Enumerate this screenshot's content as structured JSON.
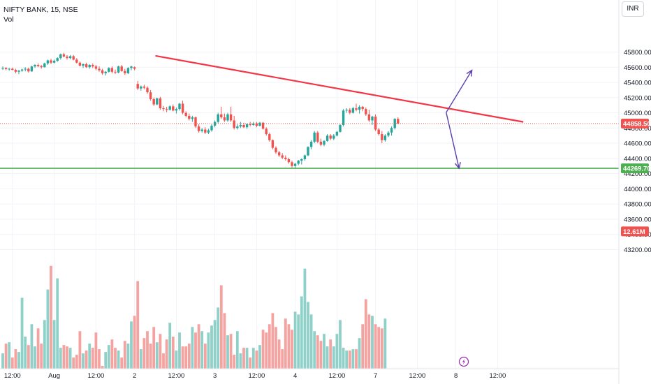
{
  "legend": {
    "symbol_line": "NIFTY BANK, 15, NSE",
    "vol_label": "Vol"
  },
  "currency": "INR",
  "colors": {
    "up": "#26a69a",
    "down": "#ef5350",
    "vol_up": "#8fd0c8",
    "vol_down": "#f5a3a1",
    "trendline": "#f23645",
    "support": "#4caf50",
    "arrows": "#5b3fb0",
    "grid": "#f0f3fa",
    "dotted_price": "#ef5350"
  },
  "chart_data": {
    "type": "candlestick",
    "title": "NIFTY BANK, 15, NSE",
    "y_ticks": [
      "45800.00",
      "45600.00",
      "45400.00",
      "45200.00",
      "45000.00",
      "44800.00",
      "44600.00",
      "44400.00",
      "44200.00",
      "44000.00",
      "43800.00",
      "43600.00",
      "43400.00",
      "43200.00"
    ],
    "x_ticks": [
      {
        "label": "12:00",
        "bar": 3
      },
      {
        "label": "Aug",
        "bar": 16
      },
      {
        "label": "12:00",
        "bar": 29
      },
      {
        "label": "2",
        "bar": 41
      },
      {
        "label": "12:00",
        "bar": 54
      },
      {
        "label": "3",
        "bar": 66
      },
      {
        "label": "12:00",
        "bar": 79
      },
      {
        "label": "4",
        "bar": 91
      },
      {
        "label": "12:00",
        "bar": 104
      },
      {
        "label": "7",
        "bar": 116
      },
      {
        "label": "12:00",
        "bar": 129
      },
      {
        "label": "8",
        "bar": 141
      },
      {
        "label": "12:00",
        "bar": 154
      }
    ],
    "ohlc": [
      [
        45580,
        45610,
        45565,
        45590
      ],
      [
        45590,
        45600,
        45560,
        45575
      ],
      [
        45575,
        45590,
        45555,
        45580
      ],
      [
        45580,
        45595,
        45560,
        45565
      ],
      [
        45565,
        45580,
        45520,
        45540
      ],
      [
        45540,
        45565,
        45510,
        45555
      ],
      [
        45555,
        45580,
        45540,
        45570
      ],
      [
        45570,
        45600,
        45545,
        45580
      ],
      [
        45580,
        45595,
        45530,
        45545
      ],
      [
        45545,
        45620,
        45540,
        45610
      ],
      [
        45610,
        45640,
        45590,
        45630
      ],
      [
        45630,
        45650,
        45600,
        45615
      ],
      [
        45615,
        45630,
        45580,
        45600
      ],
      [
        45600,
        45660,
        45595,
        45650
      ],
      [
        45650,
        45700,
        45630,
        45690
      ],
      [
        45690,
        45710,
        45640,
        45660
      ],
      [
        45660,
        45700,
        45650,
        45685
      ],
      [
        45685,
        45730,
        45670,
        45720
      ],
      [
        45720,
        45780,
        45700,
        45770
      ],
      [
        45770,
        45790,
        45730,
        45740
      ],
      [
        45740,
        45760,
        45700,
        45720
      ],
      [
        45720,
        45760,
        45705,
        45745
      ],
      [
        45745,
        45760,
        45690,
        45700
      ],
      [
        45700,
        45720,
        45650,
        45660
      ],
      [
        45660,
        45675,
        45610,
        45620
      ],
      [
        45620,
        45650,
        45590,
        45640
      ],
      [
        45640,
        45660,
        45590,
        45600
      ],
      [
        45600,
        45640,
        45580,
        45630
      ],
      [
        45630,
        45650,
        45590,
        45610
      ],
      [
        45610,
        45630,
        45560,
        45580
      ],
      [
        45580,
        45610,
        45540,
        45560
      ],
      [
        45560,
        45580,
        45500,
        45520
      ],
      [
        45520,
        45550,
        45490,
        45540
      ],
      [
        45540,
        45600,
        45530,
        45590
      ],
      [
        45590,
        45610,
        45520,
        45540
      ],
      [
        45540,
        45570,
        45510,
        45530
      ],
      [
        45530,
        45620,
        45520,
        45610
      ],
      [
        45610,
        45630,
        45540,
        45550
      ],
      [
        45550,
        45580,
        45500,
        45520
      ],
      [
        45520,
        45600,
        45510,
        45590
      ],
      [
        45590,
        45620,
        45560,
        45610
      ],
      [
        45600,
        45610,
        45560,
        45580
      ],
      [
        45380,
        45420,
        45300,
        45320
      ],
      [
        45320,
        45360,
        45290,
        45345
      ],
      [
        45345,
        45370,
        45310,
        45330
      ],
      [
        45330,
        45350,
        45250,
        45270
      ],
      [
        45270,
        45300,
        45160,
        45180
      ],
      [
        45180,
        45200,
        45090,
        45110
      ],
      [
        45110,
        45200,
        45100,
        45190
      ],
      [
        45190,
        45210,
        45040,
        45060
      ],
      [
        45060,
        45090,
        45020,
        45050
      ],
      [
        45050,
        45080,
        45010,
        45040
      ],
      [
        45040,
        45100,
        45030,
        45085
      ],
      [
        45085,
        45110,
        45020,
        45030
      ],
      [
        45030,
        45070,
        44990,
        45050
      ],
      [
        45050,
        45130,
        45030,
        45120
      ],
      [
        45120,
        45160,
        44980,
        45000
      ],
      [
        45000,
        45020,
        44940,
        44960
      ],
      [
        44960,
        44990,
        44900,
        44920
      ],
      [
        44920,
        44960,
        44880,
        44940
      ],
      [
        44940,
        44950,
        44800,
        44820
      ],
      [
        44820,
        44850,
        44740,
        44760
      ],
      [
        44760,
        44800,
        44740,
        44780
      ],
      [
        44780,
        44810,
        44720,
        44740
      ],
      [
        44740,
        44790,
        44720,
        44770
      ],
      [
        44770,
        44850,
        44750,
        44830
      ],
      [
        44830,
        44900,
        44810,
        44880
      ],
      [
        44880,
        45000,
        44860,
        44980
      ],
      [
        44980,
        45080,
        44920,
        44940
      ],
      [
        44940,
        44990,
        44880,
        44900
      ],
      [
        44900,
        45000,
        44880,
        44980
      ],
      [
        44980,
        45080,
        44880,
        44900
      ],
      [
        44900,
        44960,
        44780,
        44800
      ],
      [
        44800,
        44850,
        44780,
        44820
      ],
      [
        44820,
        44880,
        44800,
        44840
      ],
      [
        44840,
        44870,
        44800,
        44810
      ],
      [
        44810,
        44860,
        44790,
        44850
      ],
      [
        44850,
        44880,
        44820,
        44840
      ],
      [
        44840,
        44880,
        44830,
        44860
      ],
      [
        44860,
        44880,
        44810,
        44830
      ],
      [
        44830,
        44880,
        44820,
        44870
      ],
      [
        44870,
        44880,
        44780,
        44790
      ],
      [
        44790,
        44810,
        44700,
        44720
      ],
      [
        44720,
        44740,
        44620,
        44640
      ],
      [
        44640,
        44650,
        44520,
        44540
      ],
      [
        44540,
        44560,
        44460,
        44480
      ],
      [
        44480,
        44500,
        44420,
        44440
      ],
      [
        44440,
        44470,
        44390,
        44410
      ],
      [
        44410,
        44440,
        44370,
        44390
      ],
      [
        44390,
        44410,
        44330,
        44350
      ],
      [
        44350,
        44370,
        44280,
        44300
      ],
      [
        44300,
        44340,
        44270,
        44330
      ],
      [
        44330,
        44380,
        44310,
        44370
      ],
      [
        44370,
        44400,
        44320,
        44390
      ],
      [
        44390,
        44450,
        44370,
        44440
      ],
      [
        44440,
        44560,
        44430,
        44550
      ],
      [
        44550,
        44640,
        44520,
        44620
      ],
      [
        44620,
        44760,
        44600,
        44740
      ],
      [
        44740,
        44760,
        44600,
        44620
      ],
      [
        44620,
        44660,
        44560,
        44580
      ],
      [
        44580,
        44640,
        44560,
        44630
      ],
      [
        44630,
        44720,
        44620,
        44700
      ],
      [
        44700,
        44720,
        44640,
        44660
      ],
      [
        44660,
        44720,
        44640,
        44700
      ],
      [
        44700,
        44760,
        44690,
        44750
      ],
      [
        44750,
        44850,
        44740,
        44840
      ],
      [
        44840,
        45050,
        44820,
        45030
      ],
      [
        45030,
        45060,
        45000,
        45040
      ],
      [
        45040,
        45060,
        44980,
        45000
      ],
      [
        45000,
        45080,
        44990,
        45060
      ],
      [
        45060,
        45120,
        45020,
        45040
      ],
      [
        45040,
        45100,
        44990,
        45080
      ],
      [
        45080,
        45090,
        45020,
        45050
      ],
      [
        45050,
        45070,
        44960,
        44980
      ],
      [
        44980,
        45040,
        44880,
        44900
      ],
      [
        44900,
        44960,
        44840,
        44950
      ],
      [
        44950,
        44980,
        44760,
        44780
      ],
      [
        44780,
        44800,
        44700,
        44720
      ],
      [
        44720,
        44760,
        44600,
        44640
      ],
      [
        44640,
        44720,
        44620,
        44700
      ],
      [
        44700,
        44760,
        44680,
        44740
      ],
      [
        44740,
        44820,
        44700,
        44800
      ],
      [
        44800,
        44930,
        44780,
        44920
      ],
      [
        44920,
        44940,
        44850,
        44860
      ]
    ],
    "volume_m": [
      12.1,
      12.8,
      12.9,
      11.8,
      12.4,
      12.2,
      16.1,
      13.3,
      12.7,
      14.2,
      12.6,
      13.9,
      12.8,
      14.5,
      16.7,
      18.4,
      14.5,
      17.5,
      12.5,
      12.7,
      12.6,
      12.5,
      11.8,
      12.0,
      13.7,
      12.1,
      12.3,
      12.8,
      12.5,
      13.6,
      12.4,
      11.2,
      12.2,
      12.7,
      13.1,
      12.5,
      12.3,
      11.8,
      13.0,
      12.8,
      14.4,
      14.8,
      17.3,
      12.4,
      13.2,
      13.7,
      12.8,
      14.0,
      12.9,
      13.5,
      12.1,
      13.1,
      14.3,
      13.3,
      12.3,
      13.6,
      12.6,
      12.6,
      12.8,
      14.0,
      13.6,
      14.2,
      13.7,
      12.8,
      13.6,
      14.1,
      14.5,
      15.4,
      17.0,
      15.0,
      13.4,
      13.5,
      12.0,
      13.7,
      12.1,
      12.5,
      12.5,
      11.8,
      12.5,
      12.3,
      12.7,
      13.8,
      13.6,
      14.2,
      15.0,
      14.0,
      13.1,
      12.4,
      14.6,
      14.2,
      13.8,
      15.1,
      14.9,
      16.2,
      18.2,
      15.8,
      14.9,
      13.7,
      13.4,
      13.0,
      13.5,
      12.6,
      13.1,
      12.6,
      13.5,
      14.5,
      12.5,
      12.3,
      12.3,
      12.4,
      12.4,
      13.2,
      14.2,
      16.0,
      14.9,
      14.8,
      14.2,
      14.0,
      13.9,
      14.6
    ],
    "last_price": "44858.50",
    "support_price": "44269.70",
    "volume_label": "12.61M",
    "trendline": {
      "from": {
        "bar": 47.5,
        "price": 45750
      },
      "to": {
        "bar": 162,
        "price": 44880
      }
    },
    "support_line": {
      "price": 44269.7
    },
    "arrows": [
      {
        "from": {
          "bar": 138,
          "price": 45005
        },
        "to": {
          "bar": 146,
          "price": 45560
        }
      },
      {
        "from": {
          "bar": 138,
          "price": 45005
        },
        "to": {
          "bar": 142,
          "price": 44270
        }
      }
    ]
  }
}
